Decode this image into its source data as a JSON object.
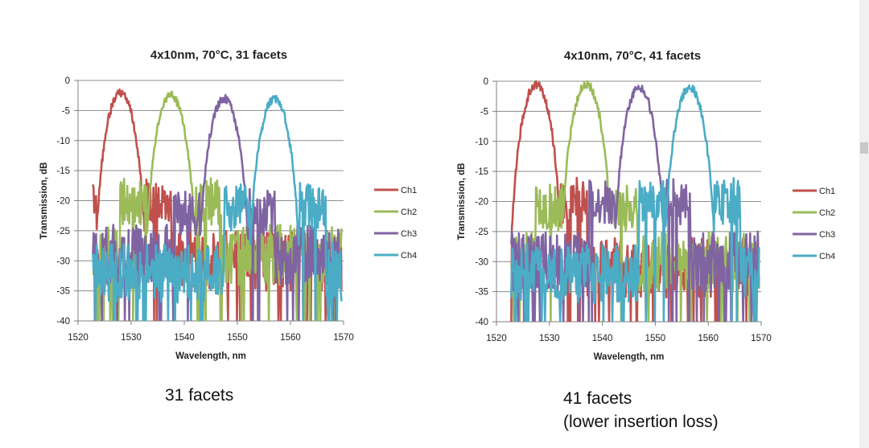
{
  "chart_data": [
    {
      "type": "line",
      "title": "4x10nm, 70°C, 31 facets",
      "xlabel": "Wavelength, nm",
      "ylabel": "Transmission, dB",
      "xlim": [
        1520,
        1570
      ],
      "ylim": [
        -40,
        0
      ],
      "xticks": [
        1520,
        1530,
        1540,
        1550,
        1560,
        1570
      ],
      "yticks": [
        0,
        -5,
        -10,
        -15,
        -20,
        -25,
        -30,
        -35,
        -40
      ],
      "grid": "horizontal",
      "legend_position": "right",
      "series": [
        {
          "name": "Ch1",
          "color": "#c0504d",
          "center": 1528,
          "peak": -2,
          "floor": -30,
          "lobe": -20
        },
        {
          "name": "Ch2",
          "color": "#9bbb59",
          "center": 1537.5,
          "peak": -2.5,
          "floor": -29,
          "lobe": -20
        },
        {
          "name": "Ch3",
          "color": "#8064a2",
          "center": 1547.5,
          "peak": -3,
          "floor": -29,
          "lobe": -22
        },
        {
          "name": "Ch4",
          "color": "#4bacc6",
          "center": 1557,
          "peak": -3,
          "floor": -32,
          "lobe": -21
        }
      ]
    },
    {
      "type": "line",
      "title": "4x10nm, 70°C, 41 facets",
      "xlabel": "Wavelength, nm",
      "ylabel": "Transmission, dB",
      "xlim": [
        1520,
        1570
      ],
      "ylim": [
        -40,
        0
      ],
      "xticks": [
        1520,
        1530,
        1540,
        1550,
        1560,
        1570
      ],
      "yticks": [
        0,
        -5,
        -10,
        -15,
        -20,
        -25,
        -30,
        -35,
        -40
      ],
      "grid": "horizontal",
      "legend_position": "right",
      "series": [
        {
          "name": "Ch1",
          "color": "#c0504d",
          "center": 1527.5,
          "peak": -0.5,
          "floor": -31,
          "lobe": -20
        },
        {
          "name": "Ch2",
          "color": "#9bbb59",
          "center": 1537,
          "peak": -0.5,
          "floor": -30,
          "lobe": -21
        },
        {
          "name": "Ch3",
          "color": "#8064a2",
          "center": 1547,
          "peak": -1,
          "floor": -30,
          "lobe": -20
        },
        {
          "name": "Ch4",
          "color": "#4bacc6",
          "center": 1556.5,
          "peak": -1,
          "floor": -32,
          "lobe": -20
        }
      ]
    }
  ],
  "captions": {
    "left": "31 facets",
    "right_line1": "41 facets",
    "right_line2": "(lower insertion loss)"
  }
}
